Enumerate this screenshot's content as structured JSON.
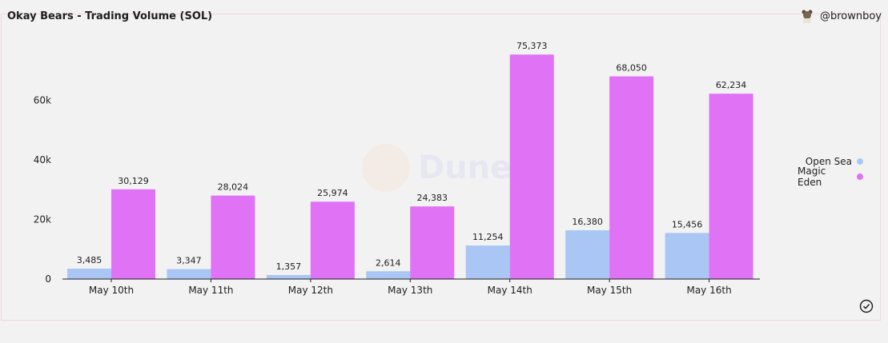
{
  "header": {
    "title": "Okay Bears - Trading Volume (SOL)",
    "author": "@brownboy"
  },
  "watermark": {
    "text": "Dune"
  },
  "colors": {
    "open_sea": "#a9c6f5",
    "magic_eden": "#df72f5",
    "axis": "#1d1d1f"
  },
  "chart_data": {
    "type": "bar",
    "title": "Okay Bears - Trading Volume (SOL)",
    "xlabel": "",
    "ylabel": "",
    "ylim": [
      0,
      80000
    ],
    "yticks": [
      0,
      20000,
      40000,
      60000
    ],
    "ytick_labels": [
      "0",
      "20k",
      "40k",
      "60k"
    ],
    "grid": false,
    "legend_position": "right",
    "categories": [
      "May 10th",
      "May 11th",
      "May 12th",
      "May 13th",
      "May 14th",
      "May 15th",
      "May 16th"
    ],
    "series": [
      {
        "name": "Open Sea",
        "values": [
          3485,
          3347,
          1357,
          2614,
          11254,
          16380,
          15456
        ],
        "labels": [
          "3,485",
          "3,347",
          "1,357",
          "2,614",
          "11,254",
          "16,380",
          "15,456"
        ]
      },
      {
        "name": "Magic Eden",
        "values": [
          30129,
          28024,
          25974,
          24383,
          75373,
          68050,
          62234
        ],
        "labels": [
          "30,129",
          "28,024",
          "25,974",
          "24,383",
          "75,373",
          "68,050",
          "62,234"
        ]
      }
    ]
  },
  "icons": {
    "author_avatar": "bear-avatar-icon",
    "status": "check-circle-icon"
  }
}
